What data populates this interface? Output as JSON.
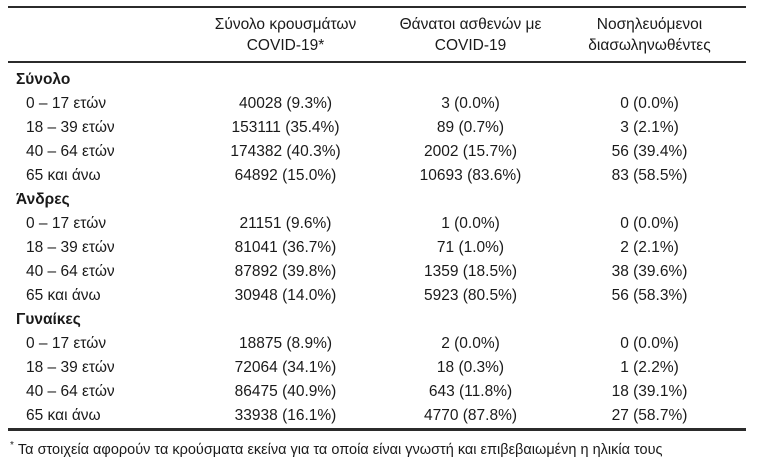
{
  "table": {
    "columns": [
      {
        "line1": "",
        "line2": ""
      },
      {
        "line1": "Σύνολο κρουσμάτων",
        "line2": "COVID-19*"
      },
      {
        "line1": "Θάνατοι ασθενών με",
        "line2": "COVID-19"
      },
      {
        "line1": "Νοσηλευόμενοι",
        "line2": "διασωληνωθέντες"
      }
    ],
    "groups": [
      {
        "label": "Σύνολο",
        "rows": [
          {
            "label": "0 – 17 ετών",
            "cases": "40028 (9.3%)",
            "deaths": "3 (0.0%)",
            "intubated": "0 (0.0%)"
          },
          {
            "label": "18 – 39 ετών",
            "cases": "153111 (35.4%)",
            "deaths": "89 (0.7%)",
            "intubated": "3 (2.1%)"
          },
          {
            "label": "40 – 64 ετών",
            "cases": "174382 (40.3%)",
            "deaths": "2002 (15.7%)",
            "intubated": "56 (39.4%)"
          },
          {
            "label": "65 και άνω",
            "cases": "64892 (15.0%)",
            "deaths": "10693 (83.6%)",
            "intubated": "83 (58.5%)"
          }
        ]
      },
      {
        "label": "Άνδρες",
        "rows": [
          {
            "label": "0 – 17 ετών",
            "cases": "21151 (9.6%)",
            "deaths": "1 (0.0%)",
            "intubated": "0 (0.0%)"
          },
          {
            "label": "18 – 39 ετών",
            "cases": "81041 (36.7%)",
            "deaths": "71 (1.0%)",
            "intubated": "2 (2.1%)"
          },
          {
            "label": "40 – 64 ετών",
            "cases": "87892 (39.8%)",
            "deaths": "1359 (18.5%)",
            "intubated": "38 (39.6%)"
          },
          {
            "label": "65 και άνω",
            "cases": "30948 (14.0%)",
            "deaths": "5923 (80.5%)",
            "intubated": "56 (58.3%)"
          }
        ]
      },
      {
        "label": "Γυναίκες",
        "rows": [
          {
            "label": "0 – 17 ετών",
            "cases": "18875 (8.9%)",
            "deaths": "2 (0.0%)",
            "intubated": "0 (0.0%)"
          },
          {
            "label": "18 – 39 ετών",
            "cases": "72064 (34.1%)",
            "deaths": "18 (0.3%)",
            "intubated": "1 (2.2%)"
          },
          {
            "label": "40 – 64 ετών",
            "cases": "86475 (40.9%)",
            "deaths": "643 (11.8%)",
            "intubated": "18 (39.1%)"
          },
          {
            "label": "65 και άνω",
            "cases": "33938 (16.1%)",
            "deaths": "4770 (87.8%)",
            "intubated": "27 (58.7%)"
          }
        ]
      }
    ],
    "footnote_marker": "*",
    "footnote": "Τα στοιχεία αφορούν τα κρούσματα εκείνα για τα οποία είναι γνωστή και επιβεβαιωμένη η ηλικία τους"
  },
  "colors": {
    "text": "#1a1a1a",
    "rule": "#2b2b2b",
    "background": "#ffffff"
  }
}
